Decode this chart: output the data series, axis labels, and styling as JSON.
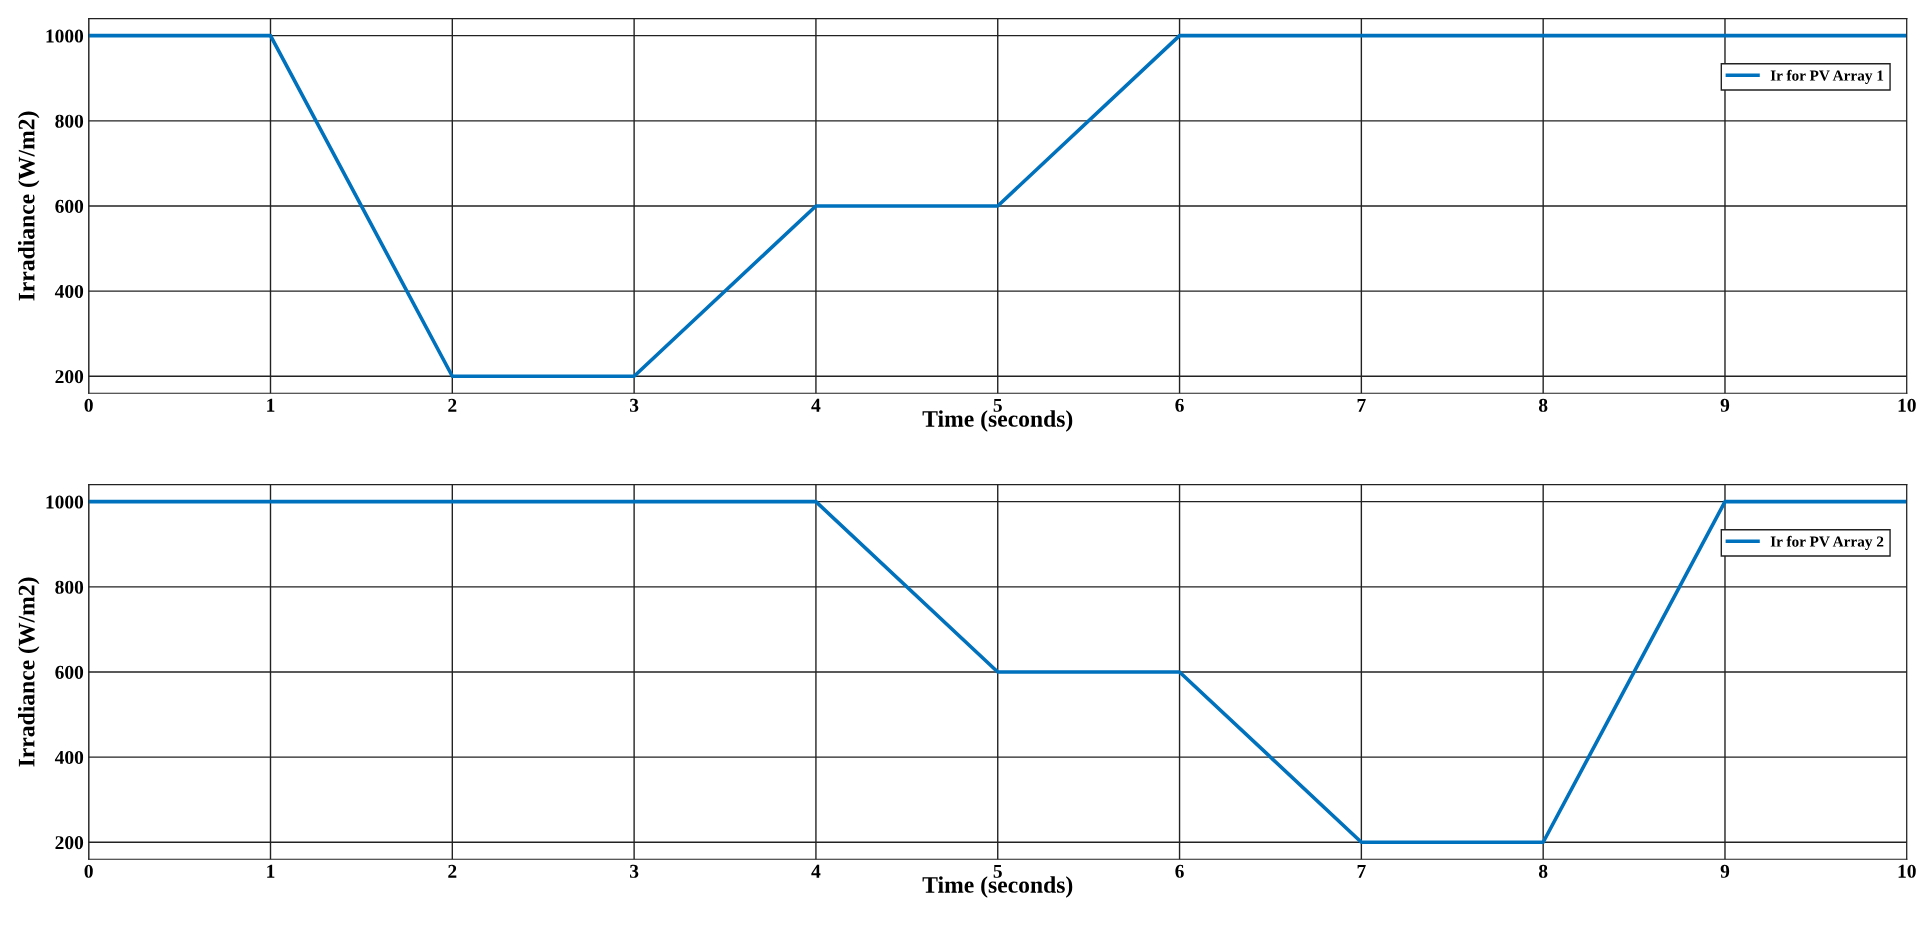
{
  "chart_data": [
    {
      "type": "line",
      "xlabel": "Time (seconds)",
      "ylabel": "Irradiance (W/m2)",
      "x": [
        0,
        1,
        2,
        3,
        4,
        5,
        6,
        7,
        8,
        9,
        10
      ],
      "series": [
        {
          "name": "Ir for PV Array 1",
          "color": "#0072bd",
          "values": [
            1000,
            1000,
            200,
            200,
            600,
            600,
            1000,
            1000,
            1000,
            1000,
            1000
          ]
        }
      ],
      "xlim": [
        0,
        10
      ],
      "xticks": [
        0,
        1,
        2,
        3,
        4,
        5,
        6,
        7,
        8,
        9,
        10
      ],
      "ylim": [
        160,
        1040
      ],
      "yticks": [
        200,
        400,
        600,
        800,
        1000
      ],
      "grid": true,
      "legend": "top right",
      "marker": "none",
      "line_style": "solid"
    },
    {
      "type": "line",
      "xlabel": "Time (seconds)",
      "ylabel": "Irradiance (W/m2)",
      "x": [
        0,
        1,
        2,
        3,
        4,
        5,
        6,
        7,
        8,
        9,
        10
      ],
      "series": [
        {
          "name": "Ir for PV Array 2",
          "color": "#0072bd",
          "values": [
            1000,
            1000,
            1000,
            1000,
            1000,
            600,
            600,
            200,
            200,
            1000,
            1000
          ]
        }
      ],
      "xlim": [
        0,
        10
      ],
      "xticks": [
        0,
        1,
        2,
        3,
        4,
        5,
        6,
        7,
        8,
        9,
        10
      ],
      "ylim": [
        160,
        1040
      ],
      "yticks": [
        200,
        400,
        600,
        800,
        1000
      ],
      "grid": true,
      "legend": "top right",
      "marker": "none",
      "line_style": "solid"
    }
  ]
}
